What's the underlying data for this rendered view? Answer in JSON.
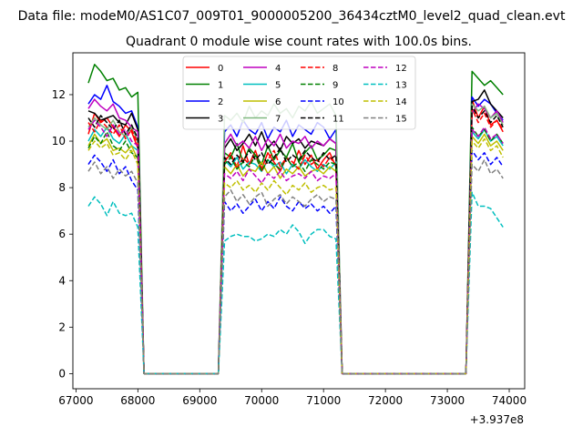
{
  "chart_data": {
    "type": "line",
    "suptitle": "Data file: modeM0/AS1C07_009T01_9000005200_36434cztM0_level2_quad_clean.evt",
    "title": "Quadrant 0 module wise count rates with 100.0s bins.",
    "xlabel": "",
    "ylabel": "",
    "xlim": [
      66950,
      74250
    ],
    "ylim": [
      -0.65,
      13.8
    ],
    "x_offset_label": "+3.937e8",
    "xticks": [
      67000,
      68000,
      69000,
      70000,
      71000,
      72000,
      73000,
      74000
    ],
    "xtick_labels": [
      "67000",
      "68000",
      "69000",
      "70000",
      "71000",
      "72000",
      "73000",
      "74000"
    ],
    "yticks": [
      0,
      2,
      4,
      6,
      8,
      10,
      12
    ],
    "ytick_labels": [
      "0",
      "2",
      "4",
      "6",
      "8",
      "10",
      "12"
    ],
    "grid": false,
    "legend": {
      "placement": "upper center",
      "columns": 4
    },
    "x": [
      67200,
      67300,
      67400,
      67500,
      67600,
      67700,
      67800,
      67900,
      68000,
      68100,
      68200,
      68300,
      68400,
      68500,
      68600,
      68700,
      68800,
      68900,
      69000,
      69100,
      69200,
      69300,
      69400,
      69500,
      69600,
      69700,
      69800,
      69900,
      70000,
      70100,
      70200,
      70300,
      70400,
      70500,
      70600,
      70700,
      70800,
      70900,
      71000,
      71100,
      71200,
      71300,
      71400,
      71500,
      71600,
      71700,
      71800,
      71900,
      72000,
      72100,
      72200,
      72300,
      72400,
      72500,
      72600,
      72700,
      72800,
      72900,
      73000,
      73100,
      73200,
      73300,
      73400,
      73500,
      73600,
      73700,
      73800,
      73900
    ],
    "series": [
      {
        "name": "0",
        "color": "#ff0000",
        "dash": "solid",
        "values": [
          10.3,
          11.2,
          10.8,
          11.0,
          10.6,
          10.2,
          10.7,
          10.4,
          9.7,
          0,
          0,
          0,
          0,
          0,
          0,
          0,
          0,
          0,
          0,
          0,
          0,
          0,
          9.2,
          9.4,
          8.9,
          9.8,
          9.0,
          9.6,
          8.8,
          9.5,
          9.1,
          8.7,
          9.3,
          8.9,
          9.6,
          9.0,
          9.4,
          8.8,
          9.2,
          9.5,
          8.9,
          0,
          0,
          0,
          0,
          0,
          0,
          0,
          0,
          0,
          0,
          0,
          0,
          0,
          0,
          0,
          0,
          0,
          0,
          0,
          0,
          0,
          11.8,
          11.0,
          11.5,
          10.7,
          10.9,
          10.4
        ]
      },
      {
        "name": "1",
        "color": "#008000",
        "dash": "solid",
        "values": [
          12.5,
          13.3,
          13.0,
          12.6,
          12.7,
          12.2,
          12.3,
          11.9,
          12.1,
          0,
          0,
          0,
          0,
          0,
          0,
          0,
          0,
          0,
          0,
          0,
          0,
          0,
          9.5,
          9.3,
          9.9,
          9.1,
          9.7,
          9.4,
          9.0,
          9.8,
          9.2,
          9.6,
          9.3,
          9.9,
          9.1,
          9.5,
          9.8,
          9.2,
          9.4,
          9.7,
          9.6,
          0,
          0,
          0,
          0,
          0,
          0,
          0,
          0,
          0,
          0,
          0,
          0,
          0,
          0,
          0,
          0,
          0,
          0,
          0,
          0,
          0,
          13.0,
          12.7,
          12.4,
          12.6,
          12.3,
          12.0
        ]
      },
      {
        "name": "2",
        "color": "#0000ff",
        "dash": "solid",
        "values": [
          11.6,
          12.0,
          11.8,
          12.4,
          11.7,
          11.5,
          11.2,
          11.3,
          10.6,
          0,
          0,
          0,
          0,
          0,
          0,
          0,
          0,
          0,
          0,
          0,
          0,
          0,
          10.4,
          10.7,
          10.2,
          10.9,
          10.5,
          10.3,
          10.8,
          10.1,
          10.6,
          10.4,
          10.9,
          10.2,
          10.7,
          10.5,
          10.3,
          10.8,
          10.6,
          10.1,
          10.5,
          0,
          0,
          0,
          0,
          0,
          0,
          0,
          0,
          0,
          0,
          0,
          0,
          0,
          0,
          0,
          0,
          0,
          0,
          0,
          0,
          0,
          11.9,
          11.5,
          11.8,
          11.6,
          11.2,
          10.9
        ]
      },
      {
        "name": "3",
        "color": "#000000",
        "dash": "solid",
        "values": [
          11.3,
          11.2,
          10.9,
          11.0,
          11.1,
          10.8,
          10.7,
          11.2,
          10.5,
          0,
          0,
          0,
          0,
          0,
          0,
          0,
          0,
          0,
          0,
          0,
          0,
          0,
          9.7,
          10.1,
          9.6,
          9.9,
          10.3,
          9.8,
          10.4,
          9.7,
          10.0,
          9.6,
          10.2,
          9.9,
          10.1,
          9.7,
          10.0,
          9.9,
          9.8,
          10.1,
          9.9,
          0,
          0,
          0,
          0,
          0,
          0,
          0,
          0,
          0,
          0,
          0,
          0,
          0,
          0,
          0,
          0,
          0,
          0,
          0,
          0,
          0,
          11.7,
          11.8,
          12.2,
          11.6,
          11.3,
          11.0
        ]
      },
      {
        "name": "4",
        "color": "#bf00bf",
        "dash": "solid",
        "values": [
          11.4,
          11.8,
          11.5,
          11.3,
          11.6,
          11.0,
          10.9,
          10.6,
          10.4,
          0,
          0,
          0,
          0,
          0,
          0,
          0,
          0,
          0,
          0,
          0,
          0,
          0,
          9.9,
          10.3,
          9.8,
          10.0,
          9.7,
          10.2,
          9.6,
          10.1,
          9.8,
          10.3,
          9.7,
          10.0,
          9.9,
          10.2,
          9.7,
          10.0,
          9.8,
          10.1,
          9.9,
          0,
          0,
          0,
          0,
          0,
          0,
          0,
          0,
          0,
          0,
          0,
          0,
          0,
          0,
          0,
          0,
          0,
          0,
          0,
          0,
          0,
          11.2,
          11.6,
          11.4,
          11.0,
          11.3,
          10.8
        ]
      },
      {
        "name": "5",
        "color": "#00bfbf",
        "dash": "solid",
        "values": [
          10.0,
          10.5,
          10.2,
          10.6,
          10.1,
          9.9,
          10.3,
          9.8,
          9.6,
          0,
          0,
          0,
          0,
          0,
          0,
          0,
          0,
          0,
          0,
          0,
          0,
          0,
          9.2,
          8.9,
          9.3,
          8.8,
          9.1,
          9.0,
          8.7,
          9.2,
          8.9,
          9.1,
          8.6,
          9.0,
          8.8,
          9.2,
          8.9,
          8.7,
          9.0,
          8.8,
          9.1,
          0,
          0,
          0,
          0,
          0,
          0,
          0,
          0,
          0,
          0,
          0,
          0,
          0,
          0,
          0,
          0,
          0,
          0,
          0,
          0,
          0,
          10.4,
          10.1,
          10.5,
          10.0,
          10.2,
          9.8
        ]
      },
      {
        "name": "6",
        "color": "#bfbf00",
        "dash": "solid",
        "values": [
          9.8,
          10.3,
          9.9,
          10.1,
          9.6,
          9.7,
          9.5,
          9.8,
          9.2,
          0,
          0,
          0,
          0,
          0,
          0,
          0,
          0,
          0,
          0,
          0,
          0,
          0,
          8.9,
          8.6,
          9.0,
          8.5,
          8.8,
          8.7,
          9.1,
          8.6,
          8.9,
          8.4,
          8.8,
          8.6,
          8.9,
          8.5,
          8.7,
          8.8,
          8.6,
          8.9,
          8.7,
          0,
          0,
          0,
          0,
          0,
          0,
          0,
          0,
          0,
          0,
          0,
          0,
          0,
          0,
          0,
          0,
          0,
          0,
          0,
          0,
          0,
          10.2,
          9.9,
          10.3,
          9.8,
          10.0,
          9.6
        ]
      },
      {
        "name": "7",
        "color": "#7fb87f",
        "dash": "solid",
        "values": [
          10.6,
          11.0,
          10.7,
          10.5,
          10.9,
          10.4,
          10.2,
          10.6,
          10.0,
          0,
          0,
          0,
          0,
          0,
          0,
          0,
          0,
          0,
          0,
          0,
          0,
          0,
          11.1,
          10.9,
          11.2,
          10.8,
          11.5,
          11.0,
          11.3,
          11.1,
          11.6,
          11.2,
          11.4,
          11.0,
          11.5,
          11.3,
          11.7,
          11.2,
          11.4,
          11.6,
          11.1,
          0,
          0,
          0,
          0,
          0,
          0,
          0,
          0,
          0,
          0,
          0,
          0,
          0,
          0,
          0,
          0,
          0,
          0,
          0,
          0,
          0,
          11.6,
          11.3,
          11.5,
          11.0,
          11.2,
          10.7
        ]
      },
      {
        "name": "8",
        "color": "#ff0000",
        "dash": "dashed",
        "values": [
          10.8,
          10.4,
          10.9,
          10.6,
          10.3,
          10.7,
          10.1,
          10.5,
          9.9,
          0,
          0,
          0,
          0,
          0,
          0,
          0,
          0,
          0,
          0,
          0,
          0,
          0,
          9.1,
          9.5,
          8.8,
          9.3,
          9.0,
          9.4,
          8.7,
          9.2,
          9.6,
          8.9,
          9.3,
          9.1,
          8.8,
          9.4,
          9.0,
          9.2,
          8.9,
          9.3,
          9.0,
          0,
          0,
          0,
          0,
          0,
          0,
          0,
          0,
          0,
          0,
          0,
          0,
          0,
          0,
          0,
          0,
          0,
          0,
          0,
          0,
          0,
          11.4,
          10.8,
          11.2,
          10.6,
          10.9,
          10.5
        ]
      },
      {
        "name": "9",
        "color": "#008000",
        "dash": "dashed",
        "values": [
          9.7,
          10.2,
          9.9,
          10.4,
          9.8,
          9.6,
          10.0,
          9.5,
          9.3,
          0,
          0,
          0,
          0,
          0,
          0,
          0,
          0,
          0,
          0,
          0,
          0,
          0,
          9.0,
          9.3,
          8.8,
          9.1,
          8.9,
          9.4,
          8.7,
          9.2,
          9.0,
          8.8,
          9.3,
          8.9,
          9.1,
          8.7,
          9.2,
          9.0,
          8.8,
          9.1,
          9.0,
          0,
          0,
          0,
          0,
          0,
          0,
          0,
          0,
          0,
          0,
          0,
          0,
          0,
          0,
          0,
          0,
          0,
          0,
          0,
          0,
          0,
          10.6,
          10.2,
          10.5,
          10.0,
          10.3,
          9.9
        ]
      },
      {
        "name": "10",
        "color": "#0000ff",
        "dash": "dashed",
        "values": [
          9.0,
          9.4,
          9.1,
          8.7,
          9.2,
          8.6,
          8.9,
          8.3,
          7.9,
          0,
          0,
          0,
          0,
          0,
          0,
          0,
          0,
          0,
          0,
          0,
          0,
          0,
          7.4,
          7.0,
          7.3,
          6.9,
          7.2,
          7.5,
          7.0,
          7.4,
          7.1,
          7.6,
          7.2,
          7.0,
          7.4,
          7.1,
          7.3,
          7.0,
          7.2,
          6.9,
          7.2,
          0,
          0,
          0,
          0,
          0,
          0,
          0,
          0,
          0,
          0,
          0,
          0,
          0,
          0,
          0,
          0,
          0,
          0,
          0,
          0,
          0,
          9.6,
          9.2,
          9.5,
          9.0,
          9.3,
          8.9
        ]
      },
      {
        "name": "11",
        "color": "#000000",
        "dash": "dashed",
        "values": [
          11.0,
          10.6,
          11.1,
          10.8,
          10.5,
          10.9,
          10.3,
          10.7,
          10.1,
          0,
          0,
          0,
          0,
          0,
          0,
          0,
          0,
          0,
          0,
          0,
          0,
          0,
          9.3,
          9.0,
          9.4,
          9.1,
          9.6,
          9.2,
          9.5,
          9.0,
          9.3,
          9.7,
          9.1,
          9.4,
          9.2,
          9.6,
          9.3,
          9.1,
          9.5,
          9.2,
          9.4,
          0,
          0,
          0,
          0,
          0,
          0,
          0,
          0,
          0,
          0,
          0,
          0,
          0,
          0,
          0,
          0,
          0,
          0,
          0,
          0,
          0,
          11.5,
          11.0,
          11.3,
          10.8,
          11.1,
          10.6
        ]
      },
      {
        "name": "12",
        "color": "#bf00bf",
        "dash": "dashed",
        "values": [
          10.5,
          10.9,
          10.6,
          10.2,
          10.7,
          10.3,
          10.5,
          10.0,
          9.8,
          0,
          0,
          0,
          0,
          0,
          0,
          0,
          0,
          0,
          0,
          0,
          0,
          0,
          8.6,
          8.4,
          8.7,
          8.3,
          8.8,
          8.5,
          8.2,
          8.6,
          8.4,
          8.7,
          8.3,
          8.5,
          8.6,
          8.4,
          8.7,
          8.3,
          8.5,
          8.4,
          8.6,
          0,
          0,
          0,
          0,
          0,
          0,
          0,
          0,
          0,
          0,
          0,
          0,
          0,
          0,
          0,
          0,
          0,
          0,
          0,
          0,
          0,
          10.5,
          10.2,
          10.6,
          10.1,
          10.3,
          9.9
        ]
      },
      {
        "name": "13",
        "color": "#00bfbf",
        "dash": "dashed",
        "values": [
          7.2,
          7.6,
          7.3,
          6.8,
          7.4,
          6.9,
          6.8,
          6.9,
          6.3,
          0,
          0,
          0,
          0,
          0,
          0,
          0,
          0,
          0,
          0,
          0,
          0,
          0,
          5.7,
          5.9,
          6.0,
          5.9,
          5.9,
          5.7,
          5.8,
          6.0,
          5.9,
          6.2,
          6.0,
          6.4,
          6.1,
          5.6,
          6.0,
          6.2,
          6.2,
          5.9,
          5.8,
          0,
          0,
          0,
          0,
          0,
          0,
          0,
          0,
          0,
          0,
          0,
          0,
          0,
          0,
          0,
          0,
          0,
          0,
          0,
          0,
          0,
          7.8,
          7.2,
          7.2,
          7.1,
          6.7,
          6.3
        ]
      },
      {
        "name": "14",
        "color": "#bfbf00",
        "dash": "dashed",
        "values": [
          9.6,
          10.0,
          9.7,
          9.9,
          9.4,
          9.5,
          9.2,
          9.6,
          9.0,
          0,
          0,
          0,
          0,
          0,
          0,
          0,
          0,
          0,
          0,
          0,
          0,
          0,
          8.2,
          8.0,
          8.3,
          7.9,
          8.1,
          7.8,
          8.2,
          7.9,
          8.3,
          8.0,
          7.7,
          8.1,
          7.9,
          8.2,
          7.8,
          8.0,
          8.1,
          7.9,
          8.0,
          0,
          0,
          0,
          0,
          0,
          0,
          0,
          0,
          0,
          0,
          0,
          0,
          0,
          0,
          0,
          0,
          0,
          0,
          0,
          0,
          0,
          10.0,
          9.7,
          10.1,
          9.6,
          9.8,
          9.3
        ]
      },
      {
        "name": "15",
        "color": "#808080",
        "dash": "dashed",
        "values": [
          8.7,
          9.1,
          8.6,
          8.9,
          8.4,
          8.8,
          8.5,
          8.7,
          8.2,
          0,
          0,
          0,
          0,
          0,
          0,
          0,
          0,
          0,
          0,
          0,
          0,
          0,
          7.6,
          7.9,
          7.4,
          7.7,
          7.3,
          7.6,
          7.8,
          7.2,
          7.5,
          7.7,
          7.3,
          7.6,
          7.4,
          7.2,
          7.5,
          7.7,
          7.4,
          7.6,
          7.5,
          0,
          0,
          0,
          0,
          0,
          0,
          0,
          0,
          0,
          0,
          0,
          0,
          0,
          0,
          0,
          0,
          0,
          0,
          0,
          0,
          0,
          9.0,
          8.7,
          9.2,
          8.6,
          8.8,
          8.4
        ]
      }
    ]
  }
}
